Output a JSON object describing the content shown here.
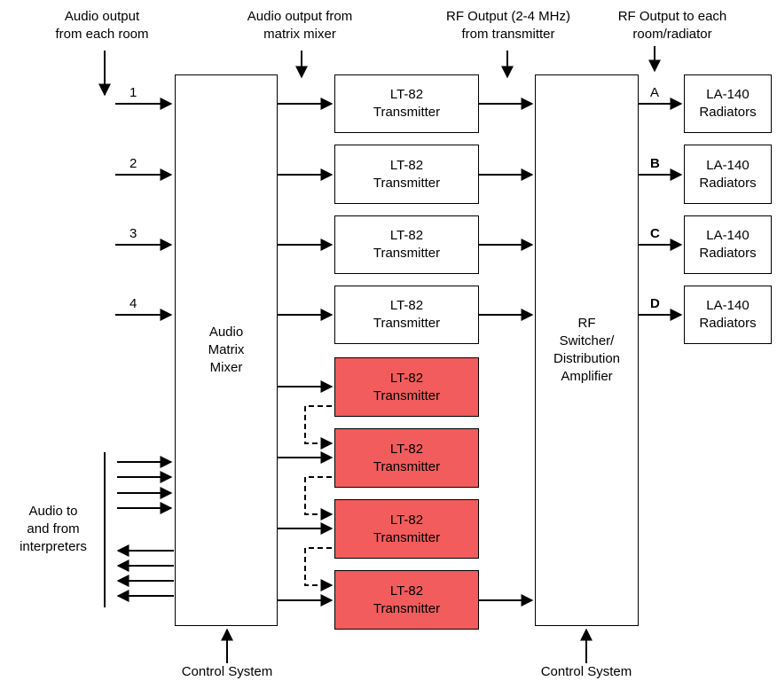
{
  "labels": {
    "audio_output_each_room": "Audio output\nfrom each room",
    "audio_output_matrix": "Audio output from\nmatrix mixer",
    "rf_output_transmitter": "RF Output (2-4 MHz)\nfrom transmitter",
    "rf_output_room": "RF Output to each\nroom/radiator",
    "audio_interpreters": "Audio to\nand from\ninterpreters",
    "control_system_left": "Control System",
    "control_system_right": "Control System"
  },
  "mixer": {
    "label": "Audio\nMatrix\nMixer"
  },
  "switcher": {
    "label": "RF\nSwitcher/\nDistribution\nAmplifier"
  },
  "inputs": [
    "1",
    "2",
    "3",
    "4"
  ],
  "transmitters": [
    {
      "label": "LT-82\nTransmitter",
      "spare": false
    },
    {
      "label": "LT-82\nTransmitter",
      "spare": false
    },
    {
      "label": "LT-82\nTransmitter",
      "spare": false
    },
    {
      "label": "LT-82\nTransmitter",
      "spare": false
    },
    {
      "label": "LT-82\nTransmitter",
      "spare": true
    },
    {
      "label": "LT-82\nTransmitter",
      "spare": true
    },
    {
      "label": "LT-82\nTransmitter",
      "spare": true
    },
    {
      "label": "LT-82\nTransmitter",
      "spare": true
    }
  ],
  "outputs": [
    {
      "letter": "A",
      "label": "LA-140\nRadiators"
    },
    {
      "letter": "B",
      "label": "LA-140\nRadiators"
    },
    {
      "letter": "C",
      "label": "LA-140\nRadiators"
    },
    {
      "letter": "D",
      "label": "LA-140\nRadiators"
    }
  ],
  "colors": {
    "spare_fill": "#f25c5c",
    "line": "#000000"
  }
}
